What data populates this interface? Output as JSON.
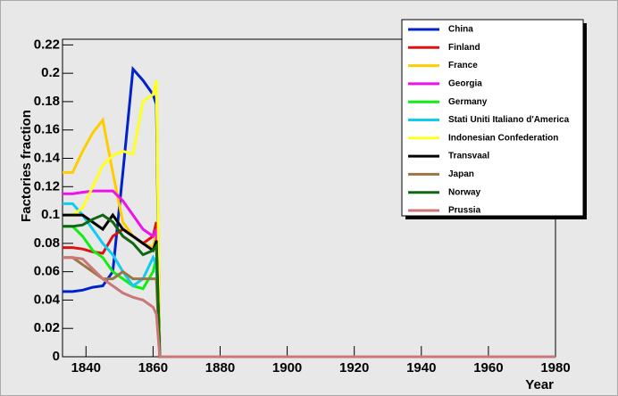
{
  "chart_data": {
    "type": "line",
    "x_label": "Year",
    "y_label": "Factories fraction",
    "x": [
      1833,
      1836,
      1839,
      1842,
      1845,
      1848,
      1851,
      1854,
      1857,
      1860,
      1861,
      1862,
      1980
    ],
    "xlim": [
      1833,
      1980
    ],
    "ylim": [
      0,
      0.224
    ],
    "xticks": [
      1840,
      1860,
      1880,
      1900,
      1920,
      1940,
      1960,
      1980
    ],
    "yticks": [
      0,
      0.02,
      0.04,
      0.06,
      0.08,
      0.1,
      0.12,
      0.14,
      0.16,
      0.18,
      0.2,
      0.22
    ],
    "legend": "top-right",
    "series": [
      {
        "name": "China",
        "color": "#0022cc",
        "values": [
          0.046,
          0.046,
          0.047,
          0.049,
          0.05,
          0.06,
          0.13,
          0.203,
          0.195,
          0.185,
          0.178,
          0,
          0
        ]
      },
      {
        "name": "Finland",
        "color": "#dd1111",
        "values": [
          0.077,
          0.077,
          0.076,
          0.074,
          0.073,
          0.085,
          0.09,
          0.085,
          0.08,
          0.085,
          0.095,
          0,
          0
        ]
      },
      {
        "name": "France",
        "color": "#ffcc00",
        "values": [
          0.13,
          0.13,
          0.145,
          0.158,
          0.167,
          0.13,
          0.095,
          0.085,
          0.08,
          0.077,
          0.09,
          0,
          0
        ]
      },
      {
        "name": "Georgia",
        "color": "#ee11ee",
        "values": [
          0.115,
          0.115,
          0.116,
          0.117,
          0.117,
          0.117,
          0.11,
          0.1,
          0.09,
          0.085,
          0.09,
          0,
          0
        ]
      },
      {
        "name": "Germany",
        "color": "#11ee11",
        "values": [
          0.092,
          0.092,
          0.085,
          0.075,
          0.07,
          0.06,
          0.055,
          0.05,
          0.048,
          0.06,
          0.07,
          0,
          0
        ]
      },
      {
        "name": "Stati Uniti Italiano d'America",
        "color": "#11ccee",
        "values": [
          0.108,
          0.108,
          0.1,
          0.09,
          0.08,
          0.072,
          0.06,
          0.05,
          0.055,
          0.07,
          0.065,
          0,
          0
        ]
      },
      {
        "name": "Indonesian Confederation",
        "color": "#ffff22",
        "values": [
          0.1,
          0.1,
          0.105,
          0.12,
          0.135,
          0.142,
          0.145,
          0.143,
          0.18,
          0.185,
          0.195,
          0,
          0
        ]
      },
      {
        "name": "Transvaal",
        "color": "#000000",
        "values": [
          0.1,
          0.1,
          0.1,
          0.095,
          0.09,
          0.1,
          0.09,
          0.085,
          0.08,
          0.075,
          0.082,
          0,
          0
        ]
      },
      {
        "name": "Japan",
        "color": "#997744",
        "values": [
          0.07,
          0.07,
          0.065,
          0.06,
          0.055,
          0.055,
          0.06,
          0.055,
          0.055,
          0.055,
          0.055,
          0,
          0
        ]
      },
      {
        "name": "Norway",
        "color": "#116611",
        "values": [
          0.092,
          0.092,
          0.093,
          0.097,
          0.1,
          0.095,
          0.085,
          0.08,
          0.072,
          0.075,
          0.078,
          0,
          0
        ]
      },
      {
        "name": "Prussia",
        "color": "#cc7777",
        "values": [
          0.07,
          0.07,
          0.069,
          0.062,
          0.055,
          0.05,
          0.045,
          0.042,
          0.04,
          0.035,
          0.03,
          0,
          0
        ]
      }
    ]
  }
}
